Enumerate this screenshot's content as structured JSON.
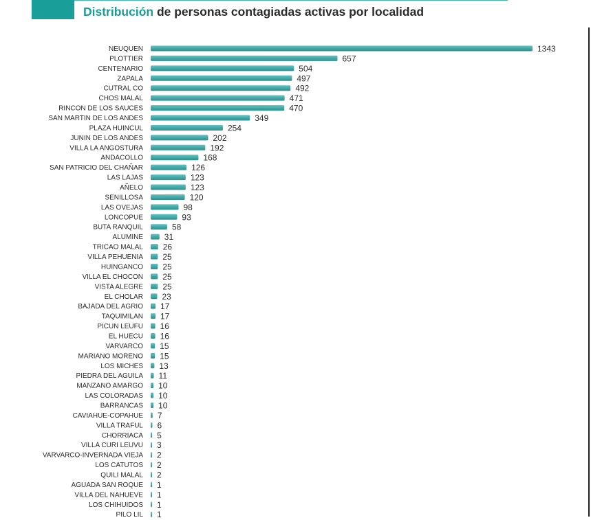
{
  "colors": {
    "accent": "#1a9e9a",
    "bar_top": "#5ec3c1",
    "bar_bottom": "#2e8f8d",
    "text": "#2b2b2b"
  },
  "header": {
    "title_accent": "Distribución",
    "title_rest": " de personas contagiadas activas por localidad"
  },
  "chart_data": {
    "type": "bar",
    "orientation": "horizontal",
    "title": "Distribución de personas contagiadas activas por localidad",
    "xlabel": "",
    "ylabel": "",
    "xlim": [
      0,
      1343
    ],
    "grid": false,
    "categories": [
      "NEUQUEN",
      "PLOTTIER",
      "CENTENARIO",
      "ZAPALA",
      "CUTRAL CO",
      "CHOS MALAL",
      "RINCON DE LOS SAUCES",
      "SAN MARTIN DE LOS ANDES",
      "PLAZA HUINCUL",
      "JUNIN DE LOS ANDES",
      "VILLA LA ANGOSTURA",
      "ANDACOLLO",
      "SAN PATRICIO DEL CHAÑAR",
      "LAS LAJAS",
      "AÑELO",
      "SENILLOSA",
      "LAS OVEJAS",
      "LONCOPUE",
      "BUTA RANQUIL",
      "ALUMINE",
      "TRICAO MALAL",
      "VILLA PEHUENIA",
      "HUINGANCO",
      "VILLA EL CHOCON",
      "VISTA ALEGRE",
      "EL CHOLAR",
      "BAJADA DEL AGRIO",
      "TAQUIMILAN",
      "PICUN LEUFU",
      "EL HUECU",
      "VARVARCO",
      "MARIANO MORENO",
      "LOS MICHES",
      "PIEDRA DEL AGUILA",
      "MANZANO AMARGO",
      "LAS COLORADAS",
      "BARRANCAS",
      "CAVIAHUE-COPAHUE",
      "VILLA TRAFUL",
      "CHORRIACA",
      "VILLA CURI LEUVU",
      "VARVARCO-INVERNADA VIEJA",
      "LOS CATUTOS",
      "QUILI MALAL",
      "AGUADA SAN ROQUE",
      "VILLA DEL NAHUEVE",
      "LOS CHIHUIDOS",
      "PILO LIL"
    ],
    "values": [
      1343,
      657,
      504,
      497,
      492,
      471,
      470,
      349,
      254,
      202,
      192,
      168,
      126,
      123,
      123,
      120,
      98,
      93,
      58,
      31,
      26,
      25,
      25,
      25,
      25,
      23,
      17,
      17,
      16,
      16,
      15,
      15,
      13,
      11,
      10,
      10,
      10,
      7,
      6,
      5,
      3,
      2,
      2,
      2,
      1,
      1,
      1,
      1
    ]
  }
}
